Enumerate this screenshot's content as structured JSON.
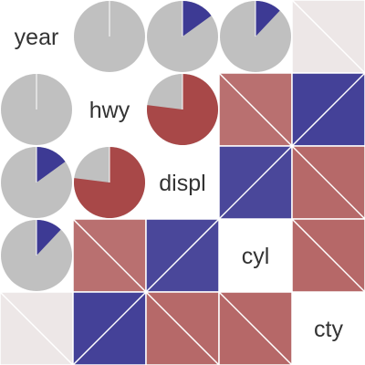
{
  "chart_data": {
    "type": "heatmap",
    "style": "correlogram",
    "upper_panel": "pie",
    "lower_panel": "shade",
    "variables": [
      "year",
      "hwy",
      "displ",
      "cyl",
      "cty"
    ],
    "correlations": [
      [
        1.0,
        0.0,
        0.15,
        0.12,
        -0.04
      ],
      [
        0.0,
        1.0,
        -0.77,
        -0.76,
        0.96
      ],
      [
        0.15,
        -0.77,
        1.0,
        0.93,
        -0.8
      ],
      [
        0.12,
        -0.76,
        0.93,
        1.0,
        -0.81
      ],
      [
        -0.04,
        0.96,
        -0.8,
        -0.81,
        1.0
      ]
    ],
    "colors": {
      "negative": "#a84848",
      "positive": "#3d3a94",
      "remainder": "#c0c0c0",
      "neutral": "#f0eeee",
      "divider": "#ffffff"
    }
  }
}
